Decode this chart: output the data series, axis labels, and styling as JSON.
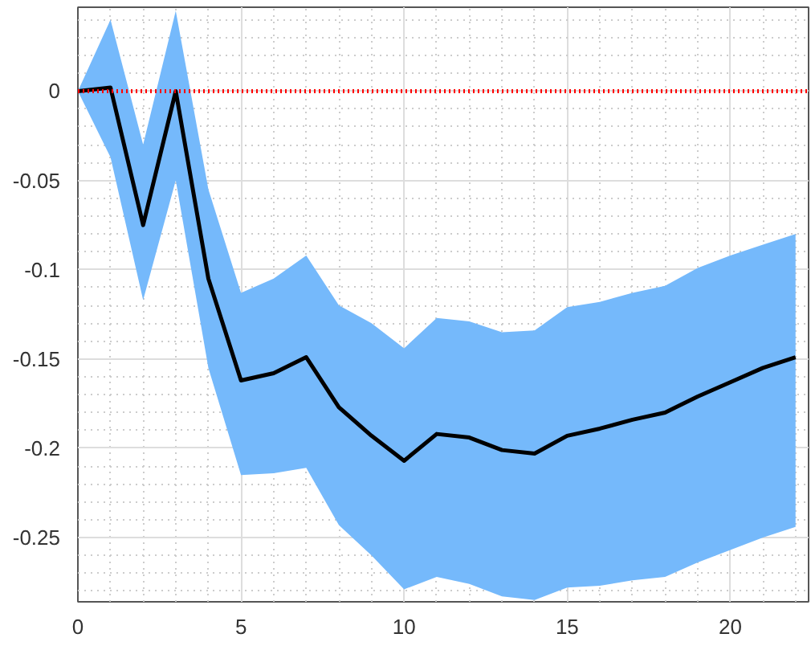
{
  "chart_data": {
    "type": "line",
    "x": [
      0,
      1,
      2,
      3,
      4,
      5,
      6,
      7,
      8,
      9,
      10,
      11,
      12,
      13,
      14,
      15,
      16,
      17,
      18,
      19,
      20,
      21,
      22
    ],
    "series": [
      {
        "color": "#000000",
        "values": [
          0,
          0.002,
          -0.075,
          0,
          -0.105,
          -0.162,
          -0.158,
          -0.149,
          -0.177,
          -0.193,
          -0.207,
          -0.192,
          -0.194,
          -0.201,
          -0.203,
          -0.193,
          -0.189,
          -0.184,
          -0.18,
          -0.171,
          -0.163,
          -0.155,
          -0.149
        ],
        "upper": [
          0,
          0.04,
          -0.03,
          0.045,
          -0.055,
          -0.113,
          -0.105,
          -0.092,
          -0.12,
          -0.13,
          -0.144,
          -0.127,
          -0.129,
          -0.135,
          -0.134,
          -0.121,
          -0.118,
          -0.113,
          -0.109,
          -0.099,
          -0.092,
          -0.086,
          -0.08
        ],
        "lower": [
          0,
          -0.037,
          -0.117,
          -0.05,
          -0.155,
          -0.215,
          -0.214,
          -0.211,
          -0.243,
          -0.26,
          -0.279,
          -0.272,
          -0.276,
          -0.283,
          -0.285,
          -0.278,
          -0.277,
          -0.274,
          -0.272,
          -0.264,
          -0.257,
          -0.25,
          -0.244
        ]
      }
    ],
    "xlim": [
      0,
      22.4
    ],
    "ylim": [
      -0.286,
      0.047
    ],
    "xticks": [
      0,
      5,
      10,
      15,
      20
    ],
    "yticks": [
      -0.25,
      -0.2,
      -0.15,
      -0.1,
      -0.05,
      0
    ],
    "ref_lines": [
      {
        "axis": "y",
        "value": 0,
        "color": "#ff0000",
        "line_style": "dotted"
      }
    ],
    "grid": true,
    "marker": "none",
    "line_style": "solid"
  }
}
